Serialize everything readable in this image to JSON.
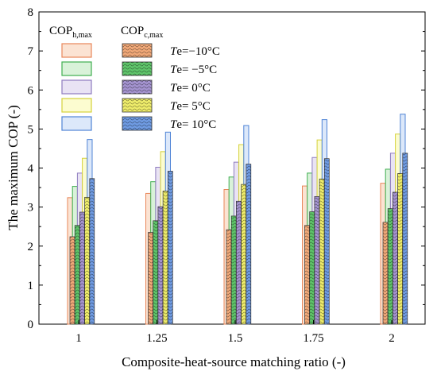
{
  "chart_data": {
    "type": "bar",
    "xlabel": "Composite-heat-source matching ratio (-)",
    "ylabel": "The maximum COP (-)",
    "ylim": [
      0,
      8
    ],
    "yticks": [
      "0",
      "1",
      "2",
      "3",
      "4",
      "5",
      "6",
      "7",
      "8"
    ],
    "categories": [
      "1",
      "1.25",
      "1.5",
      "1.75",
      "2"
    ],
    "legend": {
      "placement": "top-left",
      "heating_header": "COP",
      "heating_sub": "h,max",
      "cooling_header": "COP",
      "cooling_sub": "c,max",
      "te_prefix": "Te",
      "entries": [
        "=−10°C",
        "= −5°C",
        "= 0°C",
        "= 5°C",
        "= 10°C"
      ]
    },
    "colors": {
      "heating_fill": [
        "#fbe3d3",
        "#d9f2d9",
        "#e9e3f4",
        "#fcfcd0",
        "#dce8fa"
      ],
      "heating_edge": [
        "#e8875a",
        "#3fae50",
        "#8e7bbf",
        "#d5d23a",
        "#4f84d6"
      ],
      "cooling_fill": [
        "#f0a878",
        "#5fc46a",
        "#a493cf",
        "#eeec6a",
        "#6f9be2"
      ]
    },
    "series": [
      {
        "group": "heating",
        "values": [
          3.24,
          3.35,
          3.45,
          3.54,
          3.61
        ]
      },
      {
        "group": "heating",
        "values": [
          3.53,
          3.65,
          3.77,
          3.87,
          3.97
        ]
      },
      {
        "group": "heating",
        "values": [
          3.87,
          4.02,
          4.15,
          4.27,
          4.38
        ]
      },
      {
        "group": "heating",
        "values": [
          4.25,
          4.42,
          4.6,
          4.72,
          4.87
        ]
      },
      {
        "group": "heating",
        "values": [
          4.73,
          4.92,
          5.09,
          5.24,
          5.38
        ]
      },
      {
        "group": "cooling",
        "values": [
          2.24,
          2.35,
          2.42,
          2.53,
          2.61
        ]
      },
      {
        "group": "cooling",
        "values": [
          2.53,
          2.65,
          2.77,
          2.88,
          2.96
        ]
      },
      {
        "group": "cooling",
        "values": [
          2.87,
          3.01,
          3.15,
          3.27,
          3.38
        ]
      },
      {
        "group": "cooling",
        "values": [
          3.25,
          3.41,
          3.58,
          3.72,
          3.86
        ]
      },
      {
        "group": "cooling",
        "values": [
          3.73,
          3.92,
          4.1,
          4.24,
          4.38
        ]
      }
    ]
  }
}
